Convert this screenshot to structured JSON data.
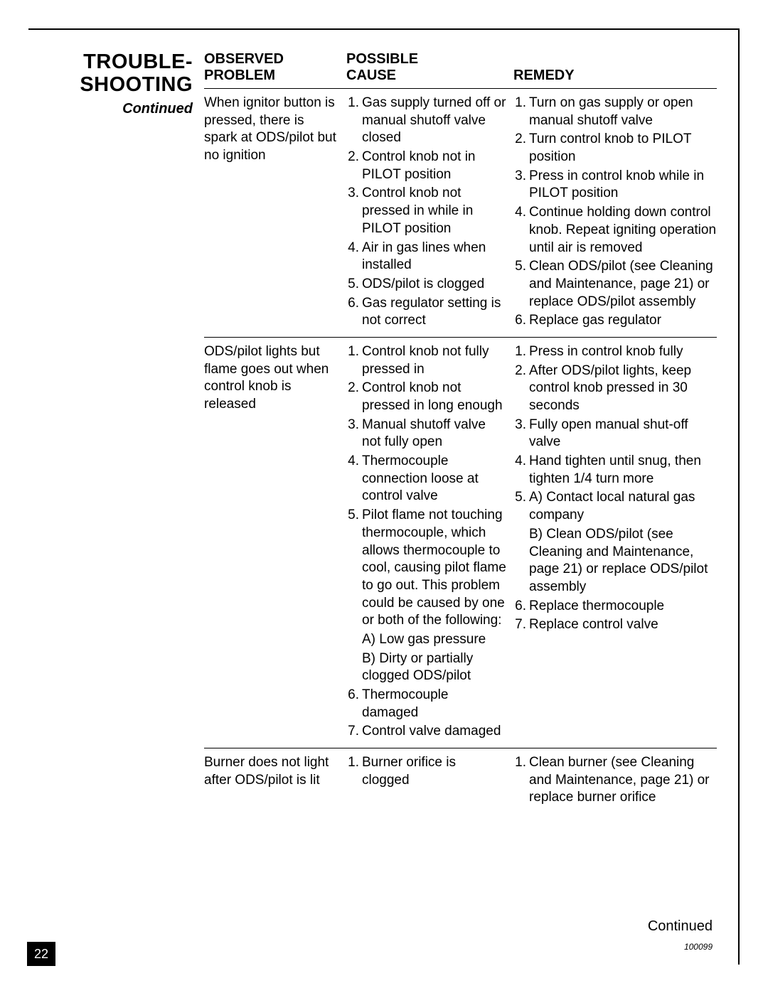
{
  "section": {
    "title_l1": "TROUBLE-",
    "title_l2": "SHOOTING",
    "continued": "Continued"
  },
  "headers": {
    "problem_l1": "OBSERVED",
    "problem_l2": "PROBLEM",
    "cause_l1": "POSSIBLE",
    "cause_l2": "CAUSE",
    "remedy": "REMEDY"
  },
  "rows": [
    {
      "problem": "When ignitor button is pressed, there is spark at ODS/pilot but no ignition",
      "causes": [
        {
          "n": "1.",
          "t": "Gas supply turned off or manual shutoff valve closed"
        },
        {
          "n": "2.",
          "t": "Control knob not in PILOT position"
        },
        {
          "n": "3.",
          "t": "Control knob not pressed in while in PILOT position"
        },
        {
          "n": "4.",
          "t": "Air in gas lines when installed"
        },
        {
          "n": "5.",
          "t": "ODS/pilot is clogged"
        },
        {
          "n": "6.",
          "t": "Gas regulator setting is not correct"
        }
      ],
      "remedies": [
        {
          "n": "1.",
          "t": "Turn on gas supply or open manual shutoff valve"
        },
        {
          "n": "2.",
          "t": "Turn control knob to PILOT position"
        },
        {
          "n": "3.",
          "t": "Press in control knob while in PILOT position"
        },
        {
          "n": "4.",
          "t": "Continue holding down control knob. Repeat igniting operation until air is removed"
        },
        {
          "n": "5.",
          "t": "Clean ODS/pilot (see Cleaning and Maintenance, page 21) or replace ODS/pilot assembly"
        },
        {
          "n": "6.",
          "t": "Replace gas regulator"
        }
      ]
    },
    {
      "problem": "ODS/pilot lights but flame goes out when control knob is released",
      "causes": [
        {
          "n": "1.",
          "t": "Control knob not fully pressed in"
        },
        {
          "n": "2.",
          "t": "Control knob not pressed in long enough"
        },
        {
          "n": "3.",
          "t": "Manual shutoff valve not fully open"
        },
        {
          "n": "4.",
          "t": "Thermocouple connection loose at control valve"
        },
        {
          "n": "5.",
          "t": "Pilot flame not touching thermocouple, which allows thermocouple to cool, causing pilot flame to go out. This problem could be caused by one or both of the following:",
          "sub": [
            "A) Low gas pressure",
            "B) Dirty or partially clogged ODS/pilot"
          ]
        },
        {
          "n": "6.",
          "t": "Thermocouple damaged"
        },
        {
          "n": "7.",
          "t": "Control valve damaged"
        }
      ],
      "remedies": [
        {
          "n": "1.",
          "t": "Press in control knob fully"
        },
        {
          "n": "2.",
          "t": "After ODS/pilot lights, keep control knob pressed in 30 seconds"
        },
        {
          "n": "3.",
          "t": "Fully open manual shut-off valve"
        },
        {
          "n": "4.",
          "t": "Hand tighten until snug, then tighten 1/4 turn more"
        },
        {
          "n": "5.",
          "t": "A) Contact local natural gas company",
          "sub": [
            "B) Clean ODS/pilot (see Cleaning and Maintenance, page 21) or replace ODS/pilot assembly"
          ]
        },
        {
          "n": "6.",
          "t": "Replace thermocouple"
        },
        {
          "n": "7.",
          "t": "Replace control valve"
        }
      ]
    },
    {
      "problem": "Burner does not light after ODS/pilot is lit",
      "causes": [
        {
          "n": "1.",
          "t": "Burner orifice is clogged"
        }
      ],
      "remedies": [
        {
          "n": "1.",
          "t": "Clean burner (see Cleaning and Maintenance, page 21) or replace burner orifice"
        }
      ]
    }
  ],
  "footer": {
    "continued": "Continued",
    "doc_id": "100099",
    "page_num": "22"
  }
}
